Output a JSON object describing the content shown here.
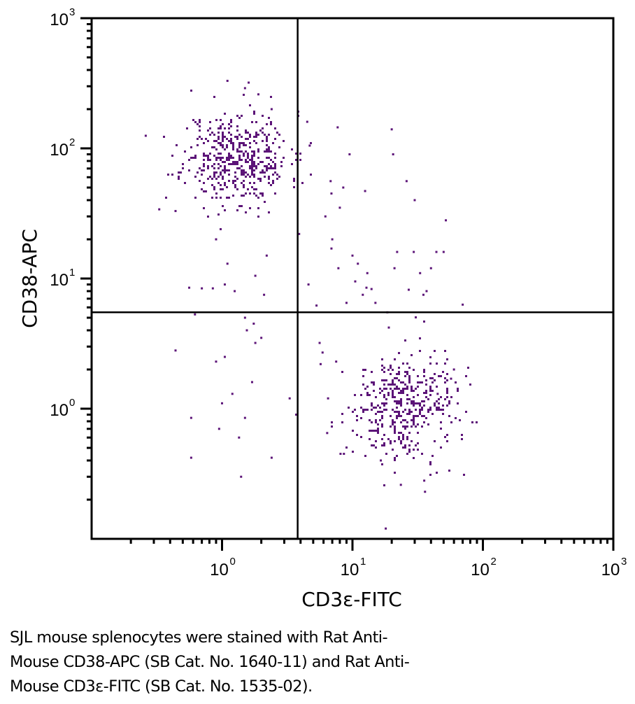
{
  "chart_data": {
    "type": "scatter",
    "subtype": "flow-cytometry-dot-plot",
    "xscale": "log",
    "yscale": "log",
    "xlim": [
      0.1,
      1000
    ],
    "ylim": [
      0.1,
      1000
    ],
    "xlabel": "CD3ε-FITC",
    "ylabel": "CD38-APC",
    "x_tick_labels": [
      {
        "value": 1,
        "base": "10",
        "exp": "0"
      },
      {
        "value": 10,
        "base": "10",
        "exp": "1"
      },
      {
        "value": 100,
        "base": "10",
        "exp": "2"
      },
      {
        "value": 1000,
        "base": "10",
        "exp": "3"
      }
    ],
    "y_tick_labels": [
      {
        "value": 1,
        "base": "10",
        "exp": "0"
      },
      {
        "value": 10,
        "base": "10",
        "exp": "1"
      },
      {
        "value": 100,
        "base": "10",
        "exp": "2"
      },
      {
        "value": 1000,
        "base": "10",
        "exp": "3"
      }
    ],
    "quadrant_gate": {
      "x": 3.8,
      "y": 5.5
    },
    "dot_color": "#5c1478",
    "populations": [
      {
        "name": "CD3ε- CD38+ (upper-left cluster)",
        "center": [
          1.3,
          85
        ],
        "spread_log10": [
          0.2,
          0.18
        ],
        "count": 480,
        "seed": 11
      },
      {
        "name": "CD3ε+ CD38 low (lower-right cluster)",
        "center": [
          24,
          1.05
        ],
        "spread_log10": [
          0.2,
          0.2
        ],
        "count": 430,
        "seed": 29
      }
    ],
    "scattered_events": [
      [
        0.26,
        125
      ],
      [
        0.33,
        34
      ],
      [
        0.44,
        33
      ],
      [
        0.44,
        2.8
      ],
      [
        0.56,
        8.5
      ],
      [
        0.58,
        0.85
      ],
      [
        0.58,
        0.42
      ],
      [
        0.62,
        5.3
      ],
      [
        0.7,
        8.4
      ],
      [
        0.85,
        8.4
      ],
      [
        0.9,
        2.3
      ],
      [
        0.9,
        20
      ],
      [
        0.95,
        0.7
      ],
      [
        1.0,
        1.1
      ],
      [
        1.05,
        9
      ],
      [
        1.1,
        13
      ],
      [
        1.05,
        2.5
      ],
      [
        1.2,
        1.3
      ],
      [
        1.25,
        8
      ],
      [
        1.35,
        0.6
      ],
      [
        1.4,
        0.3
      ],
      [
        1.5,
        5
      ],
      [
        1.5,
        0.85
      ],
      [
        1.55,
        4
      ],
      [
        1.7,
        1.6
      ],
      [
        1.75,
        4.5
      ],
      [
        1.8,
        3.2
      ],
      [
        1.8,
        10.5
      ],
      [
        2.0,
        3.5
      ],
      [
        2.1,
        7.5
      ],
      [
        2.2,
        15
      ],
      [
        2.4,
        0.42
      ],
      [
        3.3,
        1.2
      ],
      [
        3.7,
        0.9
      ],
      [
        3.9,
        22
      ],
      [
        4.5,
        160
      ],
      [
        4.6,
        9
      ],
      [
        4.7,
        105
      ],
      [
        5.3,
        6.2
      ],
      [
        5.6,
        3.2
      ],
      [
        5.7,
        2.2
      ],
      [
        5.9,
        2.7
      ],
      [
        6.2,
        30
      ],
      [
        6.4,
        0.65
      ],
      [
        6.5,
        1.2
      ],
      [
        6.8,
        56
      ],
      [
        6.9,
        45
      ],
      [
        6.9,
        17
      ],
      [
        7.0,
        20
      ],
      [
        7.5,
        2.3
      ],
      [
        7.7,
        145
      ],
      [
        7.8,
        12
      ],
      [
        8.1,
        0.45
      ],
      [
        8.6,
        0.45
      ],
      [
        8.0,
        35
      ],
      [
        8.5,
        50
      ],
      [
        9.0,
        6.5
      ],
      [
        9.5,
        90
      ],
      [
        10.0,
        15
      ],
      [
        10.5,
        9.5
      ],
      [
        11.0,
        13
      ],
      [
        12.0,
        7.5
      ],
      [
        12.5,
        47
      ],
      [
        12.8,
        8.5
      ],
      [
        13.0,
        11
      ],
      [
        14.0,
        8.3
      ],
      [
        15.0,
        6.5
      ],
      [
        16.5,
        0.4
      ],
      [
        18.0,
        0.12
      ],
      [
        18.5,
        5.5
      ],
      [
        19.0,
        4.2
      ],
      [
        20.0,
        140
      ],
      [
        20.5,
        90
      ],
      [
        21.0,
        12
      ],
      [
        22.0,
        16
      ],
      [
        23.5,
        0.26
      ],
      [
        26.0,
        56
      ],
      [
        27.0,
        8.2
      ],
      [
        29.5,
        16
      ],
      [
        30.0,
        40
      ],
      [
        33.0,
        11
      ],
      [
        35.0,
        7.5
      ],
      [
        35.5,
        0.28
      ],
      [
        36.0,
        0.23
      ],
      [
        37.0,
        8.0
      ],
      [
        40.0,
        12
      ],
      [
        44.0,
        16
      ],
      [
        45.0,
        1.3
      ],
      [
        50.0,
        16
      ],
      [
        52.0,
        28
      ],
      [
        57.0,
        1.7
      ],
      [
        60.0,
        2.0
      ],
      [
        70.0,
        6.3
      ],
      [
        1.6,
        320
      ],
      [
        1.1,
        330
      ],
      [
        2.4,
        200
      ],
      [
        1.9,
        260
      ],
      [
        1.5,
        290
      ]
    ]
  },
  "caption": {
    "lines": [
      "SJL mouse splenocytes were stained with Rat Anti-",
      "Mouse CD38-APC (SB Cat. No. 1640-11) and Rat Anti-",
      "Mouse CD3ε-FITC (SB Cat. No. 1535-02)."
    ]
  }
}
